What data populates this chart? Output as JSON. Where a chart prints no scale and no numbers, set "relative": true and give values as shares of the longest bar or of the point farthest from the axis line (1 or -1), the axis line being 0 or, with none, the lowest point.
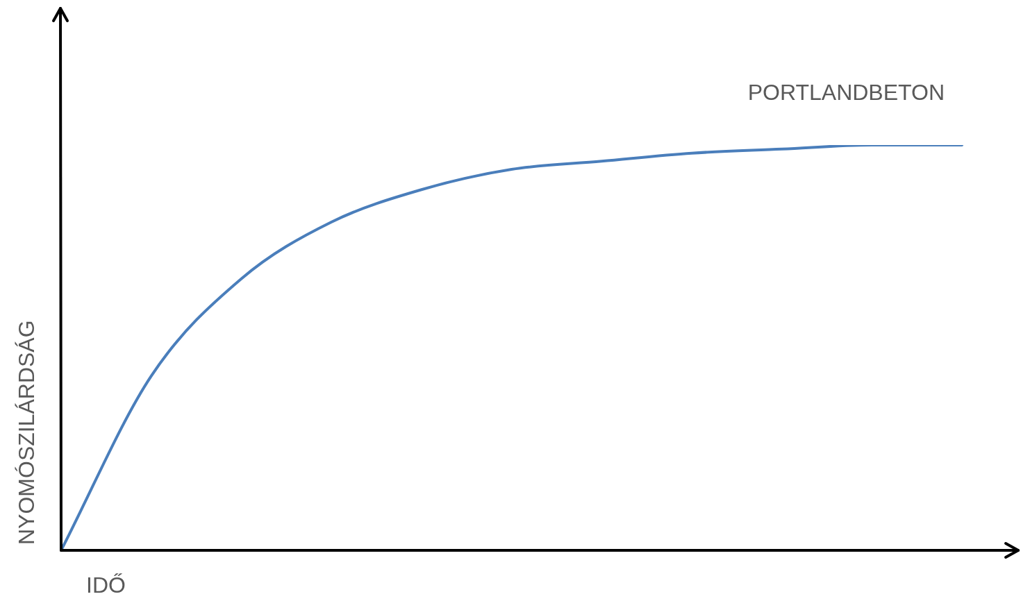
{
  "chart_data": {
    "type": "line",
    "relative": true,
    "xlabel": "IDŐ",
    "ylabel": "NYOMÓSZILÁRDSÁG",
    "tick_labels": false,
    "grid": false,
    "legend": false,
    "marker": "none",
    "line_style": "solid",
    "categories": [
      null,
      null,
      null,
      null,
      null,
      null,
      null,
      null,
      null,
      null,
      null
    ],
    "series": [
      {
        "name": "PORTLANDBETON",
        "color": "#4a7ebb",
        "values": [
          0,
          0.43,
          0.67,
          0.81,
          0.89,
          0.94,
          0.96,
          0.98,
          0.99,
          1,
          1
        ]
      }
    ]
  }
}
